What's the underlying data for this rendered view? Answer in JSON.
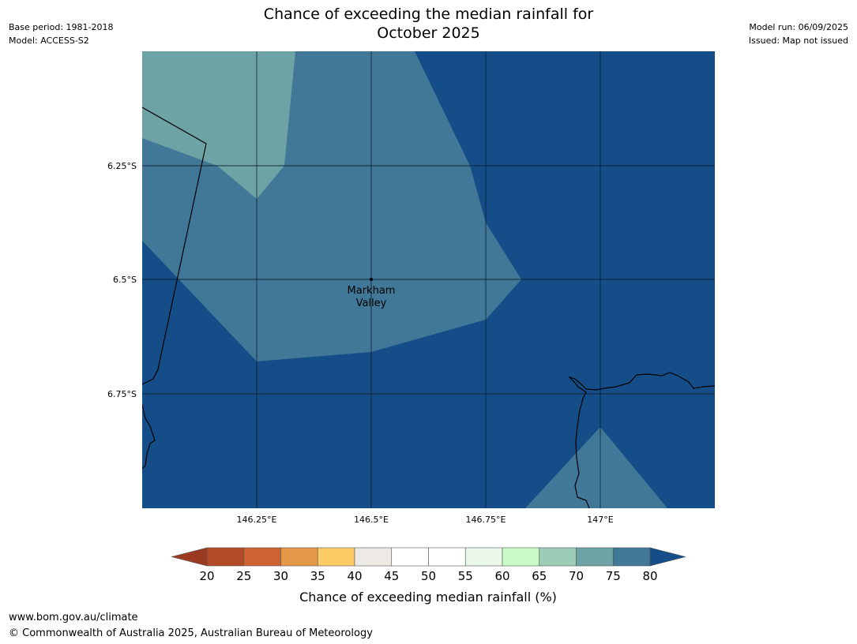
{
  "header": {
    "title_line1": "Chance of exceeding the median rainfall for",
    "title_line2": "October 2025",
    "base_period": "Base period: 1981-2018",
    "model": "Model: ACCESS-S2",
    "model_run": "Model run: 06/09/2025",
    "issued": "Issued: Map not issued"
  },
  "map": {
    "lat_labels": [
      "6.25°S",
      "6.5°S",
      "6.75°S"
    ],
    "lon_labels": [
      "146.25°E",
      "146.5°E",
      "146.75°E",
      "147°E"
    ],
    "place": {
      "name_line1": "Markham",
      "name_line2": "Valley"
    },
    "colors": {
      "band_70_75": "#6da3a5",
      "band_75_80": "#417897",
      "band_80_plus": "#144d87",
      "gridline": "#0c1a2c",
      "coastline": "#000000"
    }
  },
  "colorbar": {
    "label": "Chance of exceeding median rainfall (%)",
    "ticks": [
      "20",
      "25",
      "30",
      "35",
      "40",
      "45",
      "50",
      "55",
      "60",
      "65",
      "70",
      "75",
      "80"
    ],
    "under_color": "#9b3a21",
    "over_color": "#144d87",
    "colors": [
      "#b24a27",
      "#cf6433",
      "#e39848",
      "#fdcc66",
      "#ede9e5",
      "#ffffff",
      "#ffffff",
      "#e8f7e8",
      "#c8fac8",
      "#9ccdb7",
      "#6da3a5",
      "#417897"
    ]
  },
  "footer": {
    "url": "www.bom.gov.au/climate",
    "copyright": "© Commonwealth of Australia 2025, Australian Bureau of Meteorology"
  }
}
